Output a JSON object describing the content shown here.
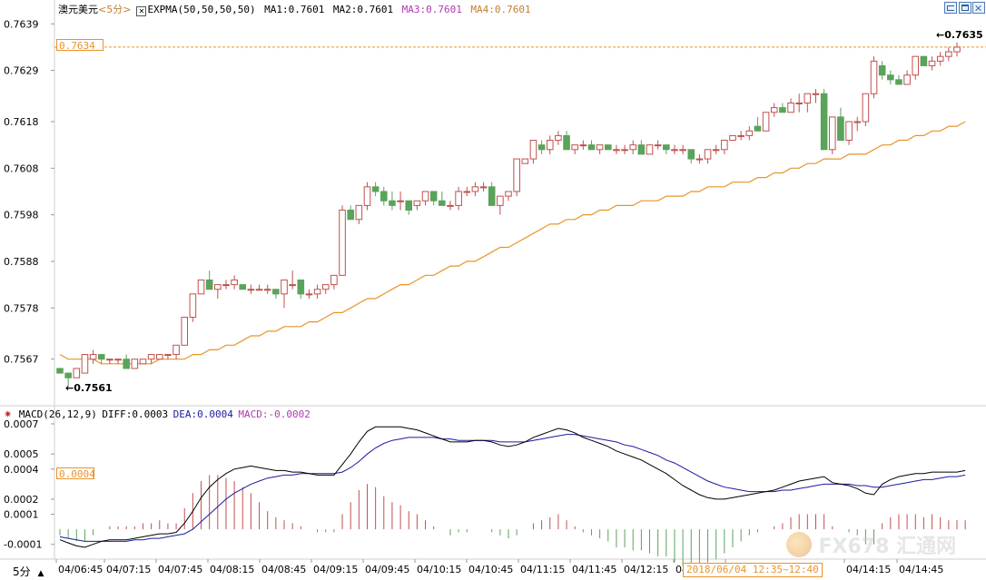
{
  "header": {
    "symbol": "澳元美元",
    "period": "<5分>",
    "indicator": "EXPMA(50,50,50,50)",
    "ma1": "MA1:0.7601",
    "ma2": "MA2:0.7601",
    "ma3": "MA3:0.7601",
    "ma4": "MA4:0.7601"
  },
  "macd_header": {
    "title": "MACD(26,12,9)",
    "diff": "DIFF:0.0003",
    "dea": "DEA:0.0004",
    "macd": "MACD:-0.0002"
  },
  "labels": {
    "current_price": "0.7634",
    "high_marker": "0.7635",
    "low_marker": "0.7561",
    "macd_current": "0.0004",
    "period_button": "5分",
    "crosshair_time": "2018/06/04  12:35~12:40",
    "watermark": "FX678 汇通网"
  },
  "colors": {
    "up": "#c0504d",
    "down": "#5aa35a",
    "expma": "#e8942a",
    "diff": "#000000",
    "dea": "#1a1aa0",
    "axis_text": "#000000",
    "dash": "#e8942a"
  },
  "chart_data": [
    {
      "type": "candlestick",
      "title": "澳元美元",
      "yticks": [
        "0.7639",
        "0.7629",
        "0.7618",
        "0.7608",
        "0.7598",
        "0.7588",
        "0.7578",
        "0.7567"
      ],
      "ylim": [
        0.7557,
        0.7641
      ],
      "xticks": [
        "04/06:45",
        "04/07:15",
        "04/07:45",
        "04/08:15",
        "04/08:45",
        "04/09:15",
        "04/09:45",
        "04/10:15",
        "04/10:45",
        "04/11:15",
        "04/11:45",
        "04/12:15",
        "04/12:45",
        "04/13:15",
        "04/14:15",
        "04/14:45"
      ],
      "ohlc": [
        [
          0.7565,
          0.7565,
          0.7564,
          0.7564
        ],
        [
          0.7564,
          0.7564,
          0.7561,
          0.7563
        ],
        [
          0.7563,
          0.7565,
          0.7563,
          0.7565
        ],
        [
          0.7564,
          0.7568,
          0.7564,
          0.7568
        ],
        [
          0.7567,
          0.7569,
          0.7566,
          0.7568
        ],
        [
          0.7568,
          0.7568,
          0.7566,
          0.7567
        ],
        [
          0.7567,
          0.7567,
          0.7566,
          0.7567
        ],
        [
          0.7567,
          0.7567,
          0.7566,
          0.7567
        ],
        [
          0.7567,
          0.7568,
          0.7565,
          0.7565
        ],
        [
          0.7565,
          0.7567,
          0.7565,
          0.7567
        ],
        [
          0.7566,
          0.7567,
          0.7566,
          0.7567
        ],
        [
          0.7567,
          0.7568,
          0.7566,
          0.7568
        ],
        [
          0.7567,
          0.7568,
          0.7567,
          0.7568
        ],
        [
          0.7568,
          0.7568,
          0.7567,
          0.7568
        ],
        [
          0.7568,
          0.757,
          0.7567,
          0.757
        ],
        [
          0.757,
          0.7576,
          0.757,
          0.7576
        ],
        [
          0.7576,
          0.7581,
          0.7575,
          0.7581
        ],
        [
          0.7581,
          0.7584,
          0.7581,
          0.7584
        ],
        [
          0.7584,
          0.7586,
          0.7582,
          0.7582
        ],
        [
          0.7582,
          0.7583,
          0.758,
          0.7583
        ],
        [
          0.7583,
          0.7584,
          0.7582,
          0.7583
        ],
        [
          0.7583,
          0.7585,
          0.7582,
          0.7584
        ],
        [
          0.7583,
          0.7583,
          0.7582,
          0.7582
        ],
        [
          0.7582,
          0.7583,
          0.7581,
          0.7582
        ],
        [
          0.7582,
          0.7583,
          0.7582,
          0.7582
        ],
        [
          0.7582,
          0.7583,
          0.7581,
          0.7582
        ],
        [
          0.7582,
          0.7582,
          0.758,
          0.7581
        ],
        [
          0.7581,
          0.7584,
          0.7578,
          0.7584
        ],
        [
          0.7583,
          0.7586,
          0.7582,
          0.7583
        ],
        [
          0.7584,
          0.7584,
          0.758,
          0.7581
        ],
        [
          0.7581,
          0.7582,
          0.758,
          0.7581
        ],
        [
          0.7581,
          0.7583,
          0.758,
          0.7582
        ],
        [
          0.7582,
          0.7583,
          0.7581,
          0.7583
        ],
        [
          0.7583,
          0.7585,
          0.7582,
          0.7585
        ],
        [
          0.7585,
          0.76,
          0.7585,
          0.7599
        ],
        [
          0.7599,
          0.76,
          0.7597,
          0.7597
        ],
        [
          0.7597,
          0.76,
          0.7596,
          0.76
        ],
        [
          0.76,
          0.7605,
          0.7599,
          0.7604
        ],
        [
          0.7604,
          0.7605,
          0.7602,
          0.7603
        ],
        [
          0.7603,
          0.7604,
          0.76,
          0.7601
        ],
        [
          0.7601,
          0.7603,
          0.7599,
          0.76
        ],
        [
          0.7601,
          0.7603,
          0.7599,
          0.7601
        ],
        [
          0.7601,
          0.7601,
          0.7598,
          0.7599
        ],
        [
          0.76,
          0.7601,
          0.7599,
          0.7601
        ],
        [
          0.7601,
          0.7603,
          0.76,
          0.7603
        ],
        [
          0.7603,
          0.7603,
          0.76,
          0.7601
        ],
        [
          0.7601,
          0.7603,
          0.76,
          0.76
        ],
        [
          0.76,
          0.7601,
          0.7599,
          0.76
        ],
        [
          0.76,
          0.7604,
          0.7599,
          0.7603
        ],
        [
          0.7603,
          0.7604,
          0.7602,
          0.7603
        ],
        [
          0.7603,
          0.7605,
          0.7602,
          0.7604
        ],
        [
          0.7604,
          0.7605,
          0.7603,
          0.7604
        ],
        [
          0.7604,
          0.7605,
          0.76,
          0.76
        ],
        [
          0.76,
          0.7602,
          0.7598,
          0.7602
        ],
        [
          0.7602,
          0.7603,
          0.7601,
          0.7603
        ],
        [
          0.7603,
          0.761,
          0.7602,
          0.761
        ],
        [
          0.7609,
          0.761,
          0.7609,
          0.761
        ],
        [
          0.761,
          0.7614,
          0.7609,
          0.7614
        ],
        [
          0.7613,
          0.7614,
          0.7611,
          0.7612
        ],
        [
          0.7612,
          0.7615,
          0.7611,
          0.7614
        ],
        [
          0.7614,
          0.7616,
          0.7613,
          0.7615
        ],
        [
          0.7615,
          0.7616,
          0.7612,
          0.7612
        ],
        [
          0.7612,
          0.7613,
          0.7611,
          0.7613
        ],
        [
          0.7613,
          0.7614,
          0.7612,
          0.7613
        ],
        [
          0.7613,
          0.7614,
          0.7612,
          0.7612
        ],
        [
          0.7612,
          0.7613,
          0.7611,
          0.7613
        ],
        [
          0.7613,
          0.7613,
          0.7612,
          0.7612
        ],
        [
          0.7612,
          0.7613,
          0.7611,
          0.7612
        ],
        [
          0.7612,
          0.7613,
          0.7611,
          0.7612
        ],
        [
          0.7612,
          0.7614,
          0.7611,
          0.7613
        ],
        [
          0.7613,
          0.7614,
          0.7611,
          0.7611
        ],
        [
          0.7611,
          0.7613,
          0.7611,
          0.7613
        ],
        [
          0.7613,
          0.7614,
          0.7612,
          0.7613
        ],
        [
          0.7613,
          0.7613,
          0.7611,
          0.7612
        ],
        [
          0.7612,
          0.7613,
          0.7611,
          0.7612
        ],
        [
          0.7612,
          0.7613,
          0.7611,
          0.7612
        ],
        [
          0.7612,
          0.7612,
          0.7609,
          0.761
        ],
        [
          0.761,
          0.7611,
          0.7609,
          0.761
        ],
        [
          0.761,
          0.7612,
          0.7609,
          0.7612
        ],
        [
          0.7612,
          0.7613,
          0.7611,
          0.7612
        ],
        [
          0.7612,
          0.7614,
          0.7611,
          0.7614
        ],
        [
          0.7614,
          0.7615,
          0.7614,
          0.7615
        ],
        [
          0.7615,
          0.7616,
          0.7614,
          0.7615
        ],
        [
          0.7615,
          0.7617,
          0.7614,
          0.7616
        ],
        [
          0.7617,
          0.7619,
          0.7616,
          0.7616
        ],
        [
          0.7616,
          0.762,
          0.7616,
          0.762
        ],
        [
          0.762,
          0.7622,
          0.7619,
          0.7621
        ],
        [
          0.7621,
          0.7622,
          0.762,
          0.762
        ],
        [
          0.762,
          0.7623,
          0.762,
          0.7622
        ],
        [
          0.7622,
          0.7624,
          0.762,
          0.7622
        ],
        [
          0.7622,
          0.7624,
          0.762,
          0.7624
        ],
        [
          0.7624,
          0.7625,
          0.7622,
          0.7624
        ],
        [
          0.7624,
          0.7625,
          0.7612,
          0.7612
        ],
        [
          0.7612,
          0.7619,
          0.7611,
          0.7619
        ],
        [
          0.7619,
          0.7621,
          0.7614,
          0.7614
        ],
        [
          0.7614,
          0.7618,
          0.7613,
          0.7618
        ],
        [
          0.7618,
          0.7619,
          0.7616,
          0.7618
        ],
        [
          0.7618,
          0.7624,
          0.7617,
          0.7624
        ],
        [
          0.7624,
          0.7632,
          0.7623,
          0.7631
        ],
        [
          0.763,
          0.7631,
          0.7627,
          0.7628
        ],
        [
          0.7628,
          0.7629,
          0.7626,
          0.7627
        ],
        [
          0.7627,
          0.7628,
          0.7626,
          0.7626
        ],
        [
          0.7626,
          0.7629,
          0.7626,
          0.7628
        ],
        [
          0.7628,
          0.7632,
          0.7627,
          0.7632
        ],
        [
          0.7632,
          0.7632,
          0.763,
          0.763
        ],
        [
          0.763,
          0.7632,
          0.7629,
          0.7631
        ],
        [
          0.7631,
          0.7633,
          0.763,
          0.7632
        ],
        [
          0.7632,
          0.7634,
          0.7631,
          0.7633
        ],
        [
          0.7633,
          0.7635,
          0.7632,
          0.7634
        ]
      ],
      "series": [
        {
          "name": "EXPMA",
          "type": "line",
          "values": [
            0.7568,
            0.7567,
            0.7567,
            0.7567,
            0.7567,
            0.7566,
            0.7566,
            0.7566,
            0.7566,
            0.7566,
            0.7566,
            0.7566,
            0.7567,
            0.7567,
            0.7567,
            0.7567,
            0.7568,
            0.7568,
            0.7569,
            0.7569,
            0.757,
            0.757,
            0.7571,
            0.7572,
            0.7572,
            0.7573,
            0.7573,
            0.7574,
            0.7574,
            0.7574,
            0.7575,
            0.7575,
            0.7576,
            0.7577,
            0.7577,
            0.7578,
            0.7579,
            0.758,
            0.758,
            0.7581,
            0.7582,
            0.7583,
            0.7583,
            0.7584,
            0.7585,
            0.7585,
            0.7586,
            0.7587,
            0.7587,
            0.7588,
            0.7588,
            0.7589,
            0.759,
            0.7591,
            0.7591,
            0.7592,
            0.7593,
            0.7594,
            0.7595,
            0.7596,
            0.7596,
            0.7597,
            0.7597,
            0.7598,
            0.7598,
            0.7599,
            0.7599,
            0.76,
            0.76,
            0.76,
            0.7601,
            0.7601,
            0.7601,
            0.7602,
            0.7602,
            0.7602,
            0.7603,
            0.7603,
            0.7604,
            0.7604,
            0.7604,
            0.7605,
            0.7605,
            0.7605,
            0.7606,
            0.7606,
            0.7607,
            0.7607,
            0.7608,
            0.7608,
            0.7609,
            0.7609,
            0.761,
            0.761,
            0.761,
            0.7611,
            0.7611,
            0.7611,
            0.7612,
            0.7613,
            0.7613,
            0.7614,
            0.7614,
            0.7615,
            0.7615,
            0.7616,
            0.7616,
            0.7617,
            0.7617,
            0.7618
          ]
        }
      ]
    },
    {
      "type": "bar+line",
      "title": "MACD(26,12,9)",
      "yticks": [
        "0.0007",
        "0.0005",
        "0.0004",
        "0.0002",
        "0.0001",
        "-0.0001"
      ],
      "ylim": [
        -0.00018,
        0.00073
      ],
      "series": [
        {
          "name": "DIFF",
          "type": "line",
          "values": [
            -7e-05,
            -9e-05,
            -0.00011,
            -0.00012,
            -0.0001,
            -8e-05,
            -7e-05,
            -7e-05,
            -7e-05,
            -6e-05,
            -5e-05,
            -4e-05,
            -3e-05,
            -3e-05,
            -2e-05,
            4e-05,
            0.00012,
            0.00021,
            0.00028,
            0.00033,
            0.00037,
            0.0004,
            0.00041,
            0.00042,
            0.00041,
            0.0004,
            0.00039,
            0.00039,
            0.00038,
            0.00038,
            0.00037,
            0.00036,
            0.00036,
            0.00036,
            0.00043,
            0.0005,
            0.00058,
            0.00065,
            0.00068,
            0.00068,
            0.00068,
            0.00068,
            0.00067,
            0.00066,
            0.00064,
            0.00062,
            0.0006,
            0.00058,
            0.00058,
            0.00058,
            0.00059,
            0.00059,
            0.00058,
            0.00056,
            0.00055,
            0.00056,
            0.00058,
            0.00061,
            0.00063,
            0.00065,
            0.00067,
            0.00066,
            0.00064,
            0.00061,
            0.00059,
            0.00057,
            0.00055,
            0.00052,
            0.0005,
            0.00048,
            0.00046,
            0.00043,
            0.0004,
            0.00037,
            0.00033,
            0.00029,
            0.00026,
            0.00023,
            0.00021,
            0.0002,
            0.0002,
            0.00021,
            0.00022,
            0.00023,
            0.00024,
            0.00025,
            0.00026,
            0.00028,
            0.0003,
            0.00032,
            0.00033,
            0.00034,
            0.00035,
            0.00031,
            0.0003,
            0.00029,
            0.00027,
            0.00024,
            0.00023,
            0.0003,
            0.00033,
            0.00035,
            0.00036,
            0.00037,
            0.00037,
            0.00038,
            0.00038,
            0.00038,
            0.00038,
            0.00039
          ]
        },
        {
          "name": "DEA",
          "type": "line",
          "values": [
            -5e-05,
            -6e-05,
            -7e-05,
            -8e-05,
            -8e-05,
            -8e-05,
            -8e-05,
            -8e-05,
            -8e-05,
            -7e-05,
            -7e-05,
            -6e-05,
            -6e-05,
            -5e-05,
            -4e-05,
            -3e-05,
            0.0,
            5e-05,
            0.0001,
            0.00015,
            0.0002,
            0.00024,
            0.00027,
            0.0003,
            0.00032,
            0.00034,
            0.00035,
            0.00036,
            0.00036,
            0.00037,
            0.00037,
            0.00037,
            0.00037,
            0.00037,
            0.00038,
            0.00041,
            0.00045,
            0.0005,
            0.00054,
            0.00057,
            0.00059,
            0.0006,
            0.00061,
            0.00061,
            0.00061,
            0.00061,
            0.0006,
            0.0006,
            0.00059,
            0.00059,
            0.00059,
            0.00059,
            0.00059,
            0.00058,
            0.00058,
            0.00058,
            0.00058,
            0.00059,
            0.0006,
            0.00061,
            0.00062,
            0.00063,
            0.00063,
            0.00062,
            0.00061,
            0.0006,
            0.00059,
            0.00058,
            0.00056,
            0.00055,
            0.00053,
            0.00051,
            0.00049,
            0.00046,
            0.00044,
            0.00041,
            0.00038,
            0.00035,
            0.00032,
            0.0003,
            0.00028,
            0.00027,
            0.00026,
            0.00025,
            0.00025,
            0.00025,
            0.00025,
            0.00026,
            0.00026,
            0.00027,
            0.00028,
            0.00029,
            0.0003,
            0.0003,
            0.0003,
            0.0003,
            0.00029,
            0.00029,
            0.00028,
            0.00028,
            0.00029,
            0.0003,
            0.00031,
            0.00032,
            0.00033,
            0.00033,
            0.00034,
            0.00035,
            0.00035,
            0.00036
          ]
        }
      ]
    }
  ]
}
